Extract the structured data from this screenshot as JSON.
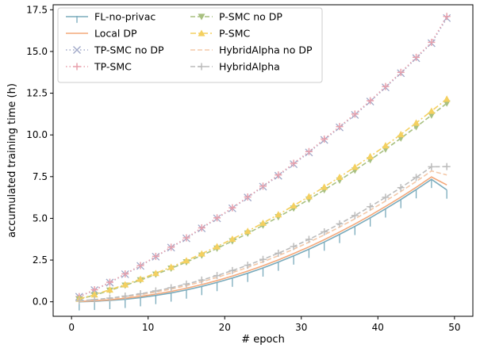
{
  "chart_data": {
    "type": "line",
    "title": "",
    "xlabel": "# epoch",
    "ylabel": "accumulated training time (h)",
    "xlim": [
      -2.4,
      52.4
    ],
    "ylim": [
      -0.87,
      17.8
    ],
    "xticks": [
      0,
      10,
      20,
      30,
      40,
      50
    ],
    "xtick_labels": [
      "0",
      "10",
      "20",
      "30",
      "40",
      "50"
    ],
    "yticks": [
      0,
      2.5,
      5,
      7.5,
      10,
      12.5,
      15,
      17.5
    ],
    "ytick_labels": [
      "0.0",
      "2.5",
      "5.0",
      "7.5",
      "10.0",
      "12.5",
      "15.0",
      "17.5"
    ],
    "grid": false,
    "legend_placement": "top-left",
    "legend_columns": 2,
    "x": [
      1,
      3,
      5,
      7,
      9,
      11,
      13,
      15,
      17,
      19,
      21,
      23,
      25,
      27,
      29,
      31,
      33,
      35,
      37,
      39,
      41,
      43,
      45,
      47,
      49
    ],
    "series": [
      {
        "name": "FL-no-privac",
        "color": "#7aabbc",
        "marker": "tick",
        "dash": "solid",
        "values": [
          0.0,
          0.03,
          0.08,
          0.15,
          0.25,
          0.38,
          0.53,
          0.71,
          0.92,
          1.16,
          1.42,
          1.71,
          2.03,
          2.38,
          2.75,
          3.15,
          3.58,
          4.04,
          4.52,
          5.03,
          5.57,
          6.13,
          6.72,
          7.34,
          6.7
        ]
      },
      {
        "name": "Local DP",
        "color": "#f4a87a",
        "marker": "none",
        "dash": "solid",
        "values": [
          0.02,
          0.06,
          0.12,
          0.21,
          0.32,
          0.46,
          0.62,
          0.81,
          1.03,
          1.27,
          1.54,
          1.84,
          2.16,
          2.51,
          2.89,
          3.29,
          3.72,
          4.18,
          4.66,
          5.17,
          5.71,
          6.27,
          6.86,
          7.48,
          7.0
        ]
      },
      {
        "name": "TP-SMC no DP",
        "color": "#a0a8c8",
        "marker": "x",
        "dash": "dotted",
        "values": [
          0.3,
          0.7,
          1.15,
          1.65,
          2.15,
          2.7,
          3.25,
          3.8,
          4.4,
          5.0,
          5.6,
          6.25,
          6.9,
          7.55,
          8.25,
          8.95,
          9.7,
          10.45,
          11.2,
          12.0,
          12.85,
          13.7,
          14.6,
          15.5,
          17.0
        ]
      },
      {
        "name": "TP-SMC",
        "color": "#e8a0ac",
        "marker": "plus",
        "dash": "dotted",
        "values": [
          0.31,
          0.72,
          1.17,
          1.67,
          2.17,
          2.72,
          3.27,
          3.83,
          4.43,
          5.03,
          5.63,
          6.28,
          6.93,
          7.6,
          8.3,
          9.0,
          9.75,
          10.5,
          11.25,
          12.05,
          12.9,
          13.75,
          14.65,
          15.55,
          17.1
        ]
      },
      {
        "name": "P-SMC no DP",
        "color": "#a8c080",
        "marker": "triangle-down",
        "dash": "dashed",
        "values": [
          0.15,
          0.4,
          0.68,
          0.98,
          1.3,
          1.64,
          2.0,
          2.38,
          2.78,
          3.2,
          3.64,
          4.1,
          4.58,
          5.08,
          5.6,
          6.14,
          6.7,
          7.28,
          7.88,
          8.5,
          9.14,
          9.8,
          10.48,
          11.18,
          11.9
        ]
      },
      {
        "name": "P-SMC",
        "color": "#f4d060",
        "marker": "triangle-up",
        "dash": "dashdot",
        "values": [
          0.17,
          0.43,
          0.72,
          1.03,
          1.36,
          1.71,
          2.08,
          2.47,
          2.88,
          3.31,
          3.76,
          4.23,
          4.72,
          5.23,
          5.76,
          6.31,
          6.88,
          7.47,
          8.08,
          8.71,
          9.36,
          10.03,
          10.72,
          11.43,
          12.15
        ]
      },
      {
        "name": "HybridAlpha no DP",
        "color": "#f4c8a8",
        "marker": "none",
        "dash": "dashed",
        "values": [
          0.04,
          0.1,
          0.18,
          0.29,
          0.42,
          0.58,
          0.76,
          0.97,
          1.2,
          1.46,
          1.75,
          2.06,
          2.4,
          2.76,
          3.15,
          3.57,
          4.01,
          4.48,
          4.97,
          5.49,
          6.04,
          6.61,
          7.21,
          7.84,
          7.6
        ]
      },
      {
        "name": "HybridAlpha",
        "color": "#bcbcbc",
        "marker": "plus",
        "dash": "dashed",
        "values": [
          0.06,
          0.13,
          0.22,
          0.34,
          0.48,
          0.65,
          0.84,
          1.06,
          1.3,
          1.57,
          1.87,
          2.19,
          2.54,
          2.91,
          3.31,
          3.74,
          4.19,
          4.67,
          5.17,
          5.7,
          6.26,
          6.84,
          7.45,
          8.09,
          8.1
        ]
      }
    ]
  }
}
